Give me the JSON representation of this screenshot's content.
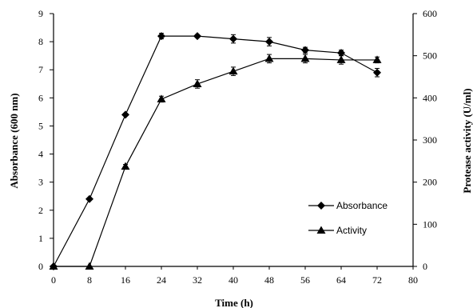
{
  "chart_data": {
    "type": "line",
    "title": "",
    "xlabel": "Time (h)",
    "ylabel_left": "Absorbance (600 nm)",
    "ylabel_right": "Protease activity (U/ml)",
    "xlim": [
      0,
      80
    ],
    "ylim_left": [
      0,
      9
    ],
    "ylim_right": [
      0,
      600
    ],
    "x_ticks": [
      "0",
      "8",
      "16",
      "24",
      "32",
      "40",
      "48",
      "56",
      "64",
      "72",
      "80"
    ],
    "y_left_ticks": [
      "0",
      "1",
      "2",
      "3",
      "4",
      "5",
      "6",
      "7",
      "8",
      "9"
    ],
    "y_right_ticks": [
      "0",
      "100",
      "200",
      "300",
      "400",
      "500",
      "600"
    ],
    "grid": false,
    "legend_position": "bottom-right",
    "series": [
      {
        "name": "Absorbance",
        "axis": "left",
        "marker": "diamond",
        "x": [
          0,
          8,
          16,
          24,
          32,
          40,
          48,
          56,
          64,
          72
        ],
        "values": [
          0,
          2.4,
          5.4,
          8.2,
          8.2,
          8.1,
          8.0,
          7.7,
          7.6,
          6.9
        ],
        "errors": [
          0,
          0,
          0,
          0.1,
          0.05,
          0.15,
          0.15,
          0.1,
          0.1,
          0.15
        ]
      },
      {
        "name": "Activity",
        "axis": "right",
        "marker": "triangle",
        "x": [
          0,
          8,
          16,
          24,
          32,
          40,
          48,
          56,
          64,
          72
        ],
        "values": [
          0,
          0,
          237,
          397,
          433,
          463,
          493,
          493,
          490,
          490
        ],
        "errors": [
          0,
          0,
          5,
          7,
          10,
          10,
          10,
          10,
          10,
          7
        ]
      }
    ]
  }
}
